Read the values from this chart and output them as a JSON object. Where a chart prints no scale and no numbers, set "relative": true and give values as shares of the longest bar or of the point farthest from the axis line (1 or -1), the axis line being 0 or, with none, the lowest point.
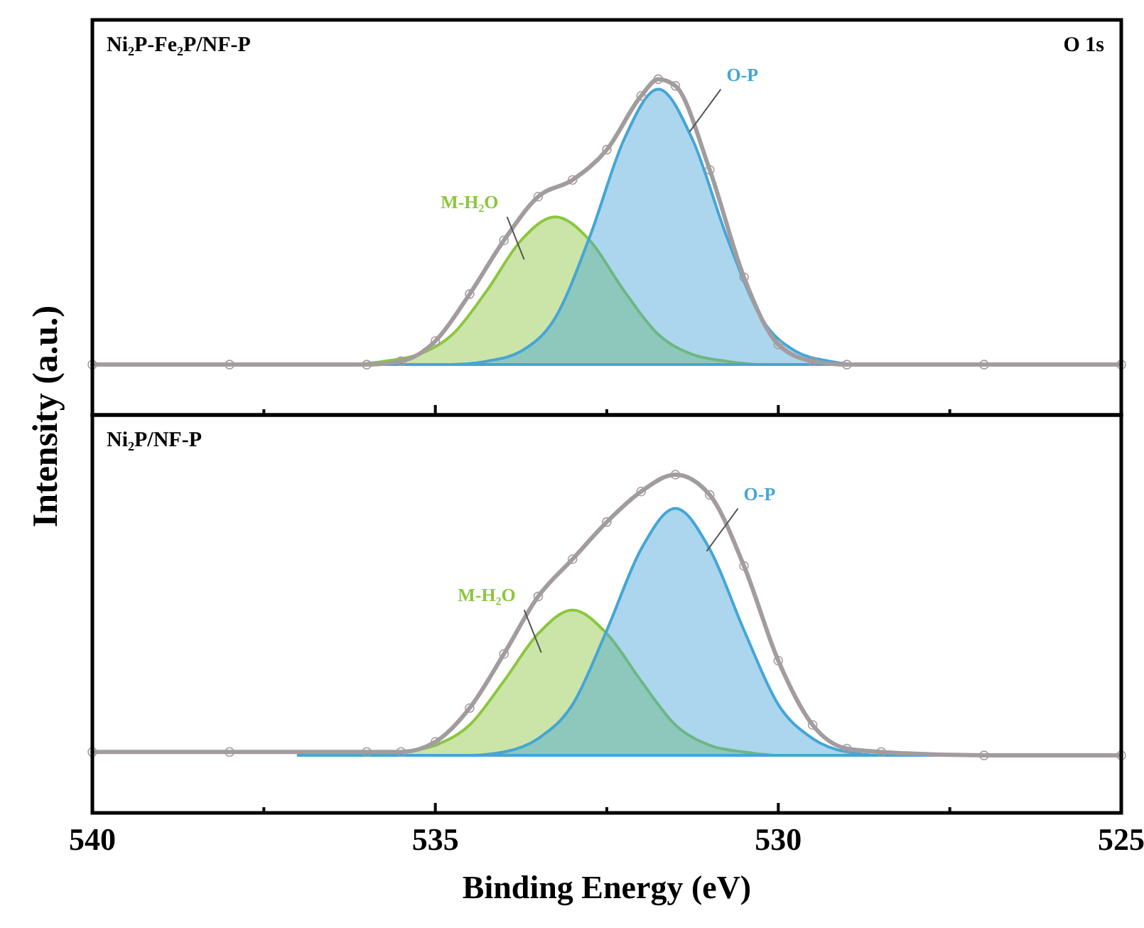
{
  "chart_data": [
    {
      "type": "area",
      "title": "Ni₂P-Fe₂P/NF-P",
      "ylabel": "Intensity (a.u.)",
      "annotations": [
        "O 1s"
      ],
      "relative": true,
      "xlim": [
        540,
        525
      ],
      "xticks": [
        540,
        {
          "value": 537.5,
          "label": null
        },
        535,
        {
          "value": 532.5,
          "label": null
        },
        530,
        {
          "value": 527.5,
          "label": null
        },
        525
      ],
      "tick_labels": false,
      "series": [
        {
          "name": "M-H₂O",
          "color": "#8cc63f",
          "x": [
            537.75,
            537.25,
            536.75,
            536.25,
            535.75,
            535.25,
            534.75,
            534.25,
            533.75,
            533.25,
            532.75,
            532.25,
            531.75,
            531.25,
            530.75,
            530.25,
            529.75,
            529.25,
            528.75,
            528.25,
            527.75
          ],
          "values": [
            0.15,
            0.15,
            0.15,
            0.15,
            0.16,
            0.18,
            0.24,
            0.37,
            0.52,
            0.59,
            0.52,
            0.37,
            0.24,
            0.18,
            0.16,
            0.15,
            0.15,
            0.15,
            0.15,
            0.15,
            0.15
          ]
        },
        {
          "name": "O-P",
          "color": "#45a5d6",
          "x": [
            537.75,
            537.25,
            536.75,
            536.25,
            535.75,
            535.25,
            534.75,
            534.25,
            533.75,
            533.25,
            532.75,
            532.25,
            531.75,
            531.25,
            530.75,
            530.25,
            529.75,
            529.25,
            528.75,
            528.25,
            527.75
          ],
          "values": [
            0.15,
            0.15,
            0.15,
            0.15,
            0.15,
            0.15,
            0.15,
            0.16,
            0.19,
            0.29,
            0.53,
            0.82,
            0.97,
            0.82,
            0.53,
            0.29,
            0.19,
            0.16,
            0.15,
            0.15,
            0.15
          ]
        },
        {
          "type": "line",
          "color": "#a39c9e",
          "marker": "circle",
          "x": [
            540,
            538,
            536,
            535.5,
            535,
            534.5,
            534,
            533.5,
            533,
            532.5,
            532,
            531.75,
            531.5,
            531,
            530.5,
            530,
            529.5,
            529,
            527,
            525
          ],
          "values": [
            0.15,
            0.15,
            0.15,
            0.16,
            0.22,
            0.36,
            0.52,
            0.65,
            0.7,
            0.79,
            0.95,
            1,
            0.98,
            0.73,
            0.41,
            0.21,
            0.16,
            0.15,
            0.15,
            0.15
          ]
        }
      ]
    },
    {
      "type": "area",
      "title": "Ni₂P/NF-P",
      "xlabel": "Binding Energy (eV)",
      "relative": true,
      "xlim": [
        540,
        525
      ],
      "xticks": [
        540,
        {
          "value": 537.5,
          "label": null
        },
        535,
        {
          "value": 532.5,
          "label": null
        },
        530,
        {
          "value": 527.5,
          "label": null
        },
        525
      ],
      "tick_labels": "x",
      "series": [
        {
          "name": "M-H₂O",
          "color": "#8cc63f",
          "x": [
            537,
            536.5,
            536,
            535.5,
            535,
            534.5,
            534,
            533.5,
            533,
            532.5,
            532,
            531.5,
            531,
            530.5,
            530,
            529.5,
            529,
            528.5,
            528,
            527.5,
            527
          ],
          "values": [
            0.17,
            0.17,
            0.17,
            0.18,
            0.2,
            0.26,
            0.39,
            0.53,
            0.6,
            0.53,
            0.39,
            0.26,
            0.2,
            0.18,
            0.17,
            0.17,
            0.17,
            0.17,
            0.17,
            0.17,
            0.17
          ]
        },
        {
          "name": "O-P",
          "color": "#45a5d6",
          "x": [
            537,
            536.5,
            536,
            535.5,
            535,
            534.5,
            534,
            533.5,
            533,
            532.5,
            532,
            531.5,
            531,
            530.5,
            530,
            529.5,
            529,
            528.5,
            528,
            527.5,
            527
          ],
          "values": [
            0.17,
            0.17,
            0.17,
            0.17,
            0.17,
            0.17,
            0.18,
            0.22,
            0.32,
            0.54,
            0.78,
            0.9,
            0.78,
            0.54,
            0.32,
            0.22,
            0.18,
            0.17,
            0.17,
            0.17,
            0.17
          ]
        },
        {
          "type": "line",
          "color": "#a39c9e",
          "marker": "circle",
          "x": [
            540,
            538,
            536,
            535.5,
            535,
            534.5,
            534,
            533.5,
            533,
            532.5,
            532,
            531.5,
            531,
            530.5,
            530,
            529.5,
            529,
            528.5,
            527,
            525
          ],
          "values": [
            0.18,
            0.18,
            0.18,
            0.18,
            0.21,
            0.31,
            0.47,
            0.64,
            0.75,
            0.86,
            0.95,
            1,
            0.94,
            0.73,
            0.45,
            0.26,
            0.19,
            0.18,
            0.17,
            0.17
          ]
        }
      ]
    }
  ]
}
